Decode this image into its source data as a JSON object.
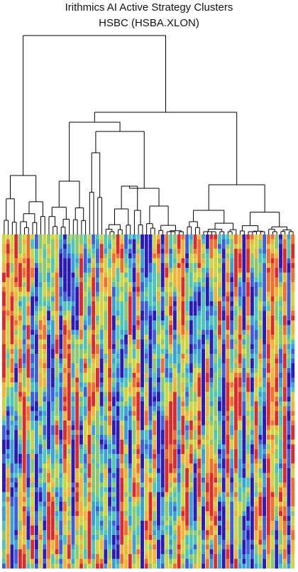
{
  "chart_data": {
    "type": "heatmap",
    "title": "Irithmics AI Active Strategy Clusters",
    "subtitle": "HSBC (HSBA.XLON)",
    "xlabel": "",
    "ylabel": "",
    "grid": false,
    "legend": "none",
    "dendrogram": "top",
    "palette": [
      "#2b1bb5",
      "#3c5fd8",
      "#3aa0d6",
      "#4fc4b8",
      "#8cc870",
      "#cfd443",
      "#f0b43a",
      "#ef6f2c",
      "#d92b2b"
    ],
    "n_columns": 72,
    "n_rows": 70,
    "leaf_order": [
      0,
      9,
      58,
      22,
      36,
      4,
      17,
      47,
      61,
      30,
      13,
      41,
      7,
      26,
      55,
      2,
      19,
      38,
      68,
      11,
      45,
      63,
      29,
      5,
      52,
      34,
      15,
      70,
      24,
      43,
      8,
      60,
      32,
      1,
      49,
      21,
      66,
      12,
      39,
      57,
      27,
      6,
      44,
      16,
      71,
      35,
      53,
      3,
      25,
      62,
      18,
      48,
      10,
      37,
      65,
      28,
      56,
      14,
      42,
      69,
      23,
      51,
      31,
      59,
      20,
      46,
      33,
      64,
      40,
      67,
      50,
      54
    ],
    "values_note": "cell values are integer palette indices 0-8 per row x column"
  }
}
